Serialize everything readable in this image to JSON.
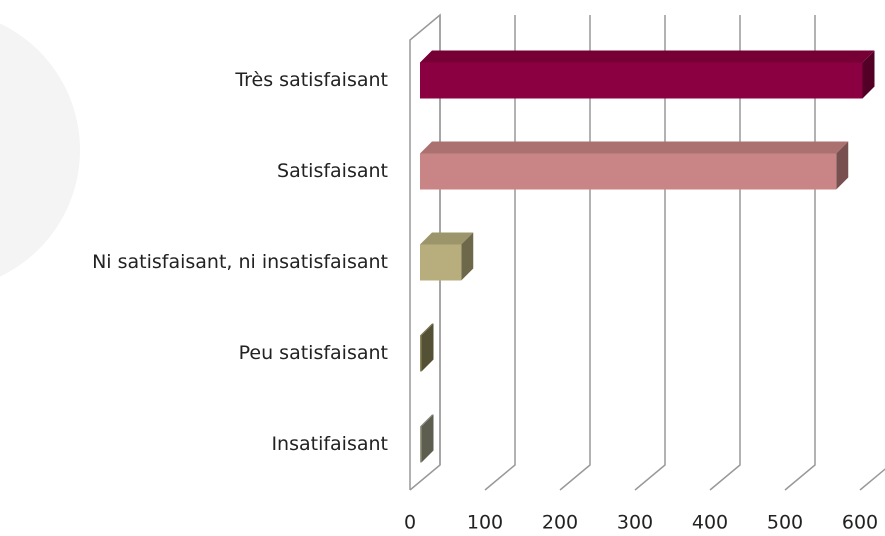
{
  "chart_data": {
    "type": "bar3d",
    "categories": [
      "Très satisfaisant",
      "Satisfaisant",
      "Ni satisfaisant, ni insatisfaisant",
      "Peu satisfaisant",
      "Insatifaisant"
    ],
    "values": [
      590,
      555,
      55,
      2,
      2
    ],
    "colors": [
      "#8b0040",
      "#c98585",
      "#b8ae7d",
      "#8a8658",
      "#9b9b86"
    ],
    "xlim": [
      0,
      600
    ],
    "xticks": [
      0,
      100,
      200,
      300,
      400,
      500,
      600
    ],
    "grid": true
  }
}
